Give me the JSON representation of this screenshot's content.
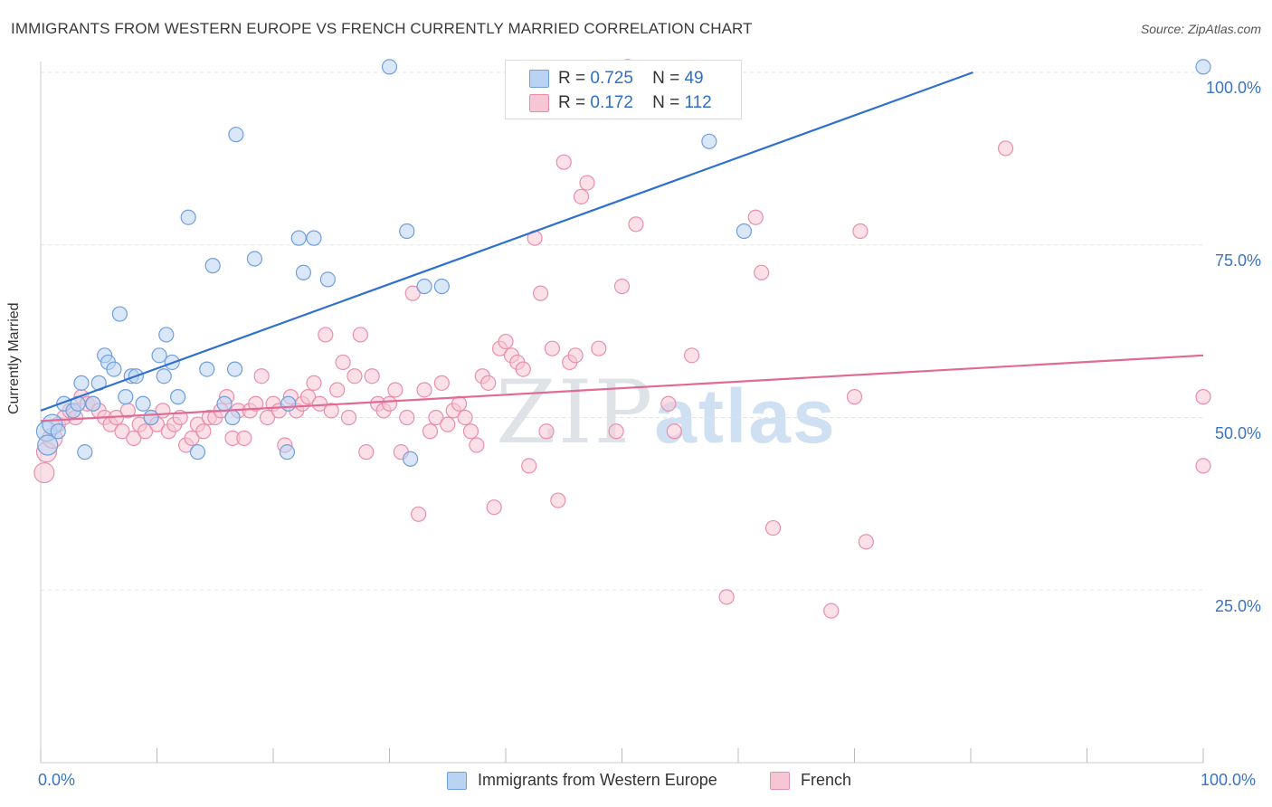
{
  "title": "IMMIGRANTS FROM WESTERN EUROPE VS FRENCH CURRENTLY MARRIED CORRELATION CHART",
  "source": "Source: ZipAtlas.com",
  "watermark": {
    "zip": "ZIP",
    "atlas": "atlas"
  },
  "colors": {
    "blue_fill": "#b9d3f3",
    "blue_stroke": "#6f9fdc",
    "blue_line": "#2e6fd0",
    "pink_fill": "#f7c6d5",
    "pink_stroke": "#e98fab",
    "pink_line": "#e06a93",
    "tick_text": "#3b73c4",
    "grid": "#e3e3e3"
  },
  "legend_top": [
    {
      "r_label": "R =",
      "r_value": "0.725",
      "n_label": "N =",
      "n_value": "49"
    },
    {
      "r_label": "R =",
      "r_value": "0.172",
      "n_label": "N =",
      "n_value": "112"
    }
  ],
  "chart_data": {
    "type": "scatter",
    "title": "IMMIGRANTS FROM WESTERN EUROPE VS FRENCH CURRENTLY MARRIED CORRELATION CHART",
    "xlabel": "",
    "ylabel": "Currently Married",
    "xlim": [
      0,
      100
    ],
    "ylim": [
      0,
      100
    ],
    "x_tick_labels": [
      "0.0%",
      "100.0%"
    ],
    "y_tick_labels": [
      "25.0%",
      "50.0%",
      "75.0%",
      "100.0%"
    ],
    "y_ticks": [
      25,
      50,
      75,
      100
    ],
    "legend": [
      "Immigrants from Western Europe",
      "French"
    ],
    "series": [
      {
        "name": "Immigrants from Western Europe",
        "r": 0.725,
        "n": 49,
        "trend": {
          "x": [
            0,
            80.2
          ],
          "y": [
            51,
            100
          ]
        },
        "points": [
          [
            0.5,
            48
          ],
          [
            0.6,
            46
          ],
          [
            1,
            49
          ],
          [
            1.5,
            48
          ],
          [
            2,
            52
          ],
          [
            2.8,
            51
          ],
          [
            3.2,
            52
          ],
          [
            3.5,
            55
          ],
          [
            3.8,
            45
          ],
          [
            4.5,
            52
          ],
          [
            5,
            55
          ],
          [
            5.5,
            59
          ],
          [
            5.8,
            58
          ],
          [
            6.3,
            57
          ],
          [
            6.8,
            65
          ],
          [
            7.3,
            53
          ],
          [
            7.8,
            56
          ],
          [
            8.2,
            56
          ],
          [
            8.8,
            52
          ],
          [
            9.5,
            50
          ],
          [
            10.2,
            59
          ],
          [
            10.6,
            56
          ],
          [
            10.8,
            62
          ],
          [
            11.3,
            58
          ],
          [
            11.8,
            53
          ],
          [
            12.7,
            79
          ],
          [
            13.5,
            45
          ],
          [
            14.3,
            57
          ],
          [
            14.8,
            72
          ],
          [
            15.8,
            52
          ],
          [
            16.5,
            50
          ],
          [
            16.7,
            57
          ],
          [
            16.8,
            91
          ],
          [
            18.4,
            73
          ],
          [
            21.2,
            45
          ],
          [
            21.3,
            52
          ],
          [
            22.2,
            76
          ],
          [
            22.6,
            71
          ],
          [
            23.5,
            76
          ],
          [
            24.7,
            70
          ],
          [
            30,
            102
          ],
          [
            31.5,
            77
          ],
          [
            31.8,
            44
          ],
          [
            33,
            69
          ],
          [
            34.5,
            69
          ],
          [
            50.5,
            102
          ],
          [
            57.5,
            90
          ],
          [
            60.5,
            77
          ],
          [
            100,
            102
          ]
        ]
      },
      {
        "name": "French",
        "r": 0.172,
        "n": 112,
        "trend": {
          "x": [
            0,
            100
          ],
          "y": [
            49.5,
            59
          ]
        },
        "points": [
          [
            0.3,
            42
          ],
          [
            0.5,
            45
          ],
          [
            1,
            47
          ],
          [
            1.5,
            49
          ],
          [
            2,
            50
          ],
          [
            2.5,
            51
          ],
          [
            3,
            50
          ],
          [
            3.5,
            53
          ],
          [
            4,
            52
          ],
          [
            4.5,
            52
          ],
          [
            5,
            51
          ],
          [
            5.5,
            50
          ],
          [
            6,
            49
          ],
          [
            6.5,
            50
          ],
          [
            7,
            48
          ],
          [
            7.5,
            51
          ],
          [
            8,
            47
          ],
          [
            8.5,
            49
          ],
          [
            9,
            48
          ],
          [
            9.5,
            50
          ],
          [
            10,
            49
          ],
          [
            10.5,
            51
          ],
          [
            11,
            48
          ],
          [
            11.5,
            49
          ],
          [
            12,
            50
          ],
          [
            12.5,
            46
          ],
          [
            13,
            47
          ],
          [
            13.5,
            49
          ],
          [
            14,
            48
          ],
          [
            14.5,
            50
          ],
          [
            15,
            50
          ],
          [
            15.5,
            51
          ],
          [
            16,
            53
          ],
          [
            16.5,
            47
          ],
          [
            17,
            51
          ],
          [
            17.5,
            47
          ],
          [
            18,
            51
          ],
          [
            18.5,
            52
          ],
          [
            19,
            56
          ],
          [
            19.5,
            50
          ],
          [
            20,
            52
          ],
          [
            20.5,
            51
          ],
          [
            21,
            46
          ],
          [
            21.5,
            53
          ],
          [
            22,
            51
          ],
          [
            22.5,
            52
          ],
          [
            23,
            53
          ],
          [
            23.5,
            55
          ],
          [
            24,
            52
          ],
          [
            24.5,
            62
          ],
          [
            25,
            51
          ],
          [
            25.5,
            54
          ],
          [
            26,
            58
          ],
          [
            26.5,
            50
          ],
          [
            27,
            56
          ],
          [
            27.5,
            62
          ],
          [
            28,
            45
          ],
          [
            28.5,
            56
          ],
          [
            29,
            52
          ],
          [
            29.5,
            51
          ],
          [
            30,
            52
          ],
          [
            30.5,
            54
          ],
          [
            31,
            45
          ],
          [
            31.5,
            50
          ],
          [
            32,
            68
          ],
          [
            32.5,
            36
          ],
          [
            33,
            54
          ],
          [
            33.5,
            48
          ],
          [
            34,
            50
          ],
          [
            34.5,
            55
          ],
          [
            35,
            49
          ],
          [
            35.5,
            51
          ],
          [
            36,
            52
          ],
          [
            36.5,
            50
          ],
          [
            37,
            48
          ],
          [
            37.5,
            46
          ],
          [
            38,
            56
          ],
          [
            38.5,
            55
          ],
          [
            39,
            37
          ],
          [
            39.5,
            60
          ],
          [
            40,
            61
          ],
          [
            40.5,
            59
          ],
          [
            41,
            58
          ],
          [
            41.5,
            57
          ],
          [
            42,
            43
          ],
          [
            42.5,
            76
          ],
          [
            43,
            68
          ],
          [
            43.5,
            48
          ],
          [
            44,
            60
          ],
          [
            44.5,
            38
          ],
          [
            45,
            87
          ],
          [
            45.5,
            58
          ],
          [
            46,
            59
          ],
          [
            46.5,
            82
          ],
          [
            47,
            84
          ],
          [
            48,
            60
          ],
          [
            49.5,
            48
          ],
          [
            50,
            69
          ],
          [
            51.2,
            78
          ],
          [
            54,
            52
          ],
          [
            54.5,
            48
          ],
          [
            56,
            59
          ],
          [
            59,
            24
          ],
          [
            61.5,
            79
          ],
          [
            62,
            71
          ],
          [
            63,
            34
          ],
          [
            68,
            22
          ],
          [
            70,
            53
          ],
          [
            70.5,
            77
          ],
          [
            71,
            32
          ],
          [
            83,
            89
          ],
          [
            100,
            53
          ],
          [
            100,
            43
          ]
        ]
      }
    ]
  }
}
